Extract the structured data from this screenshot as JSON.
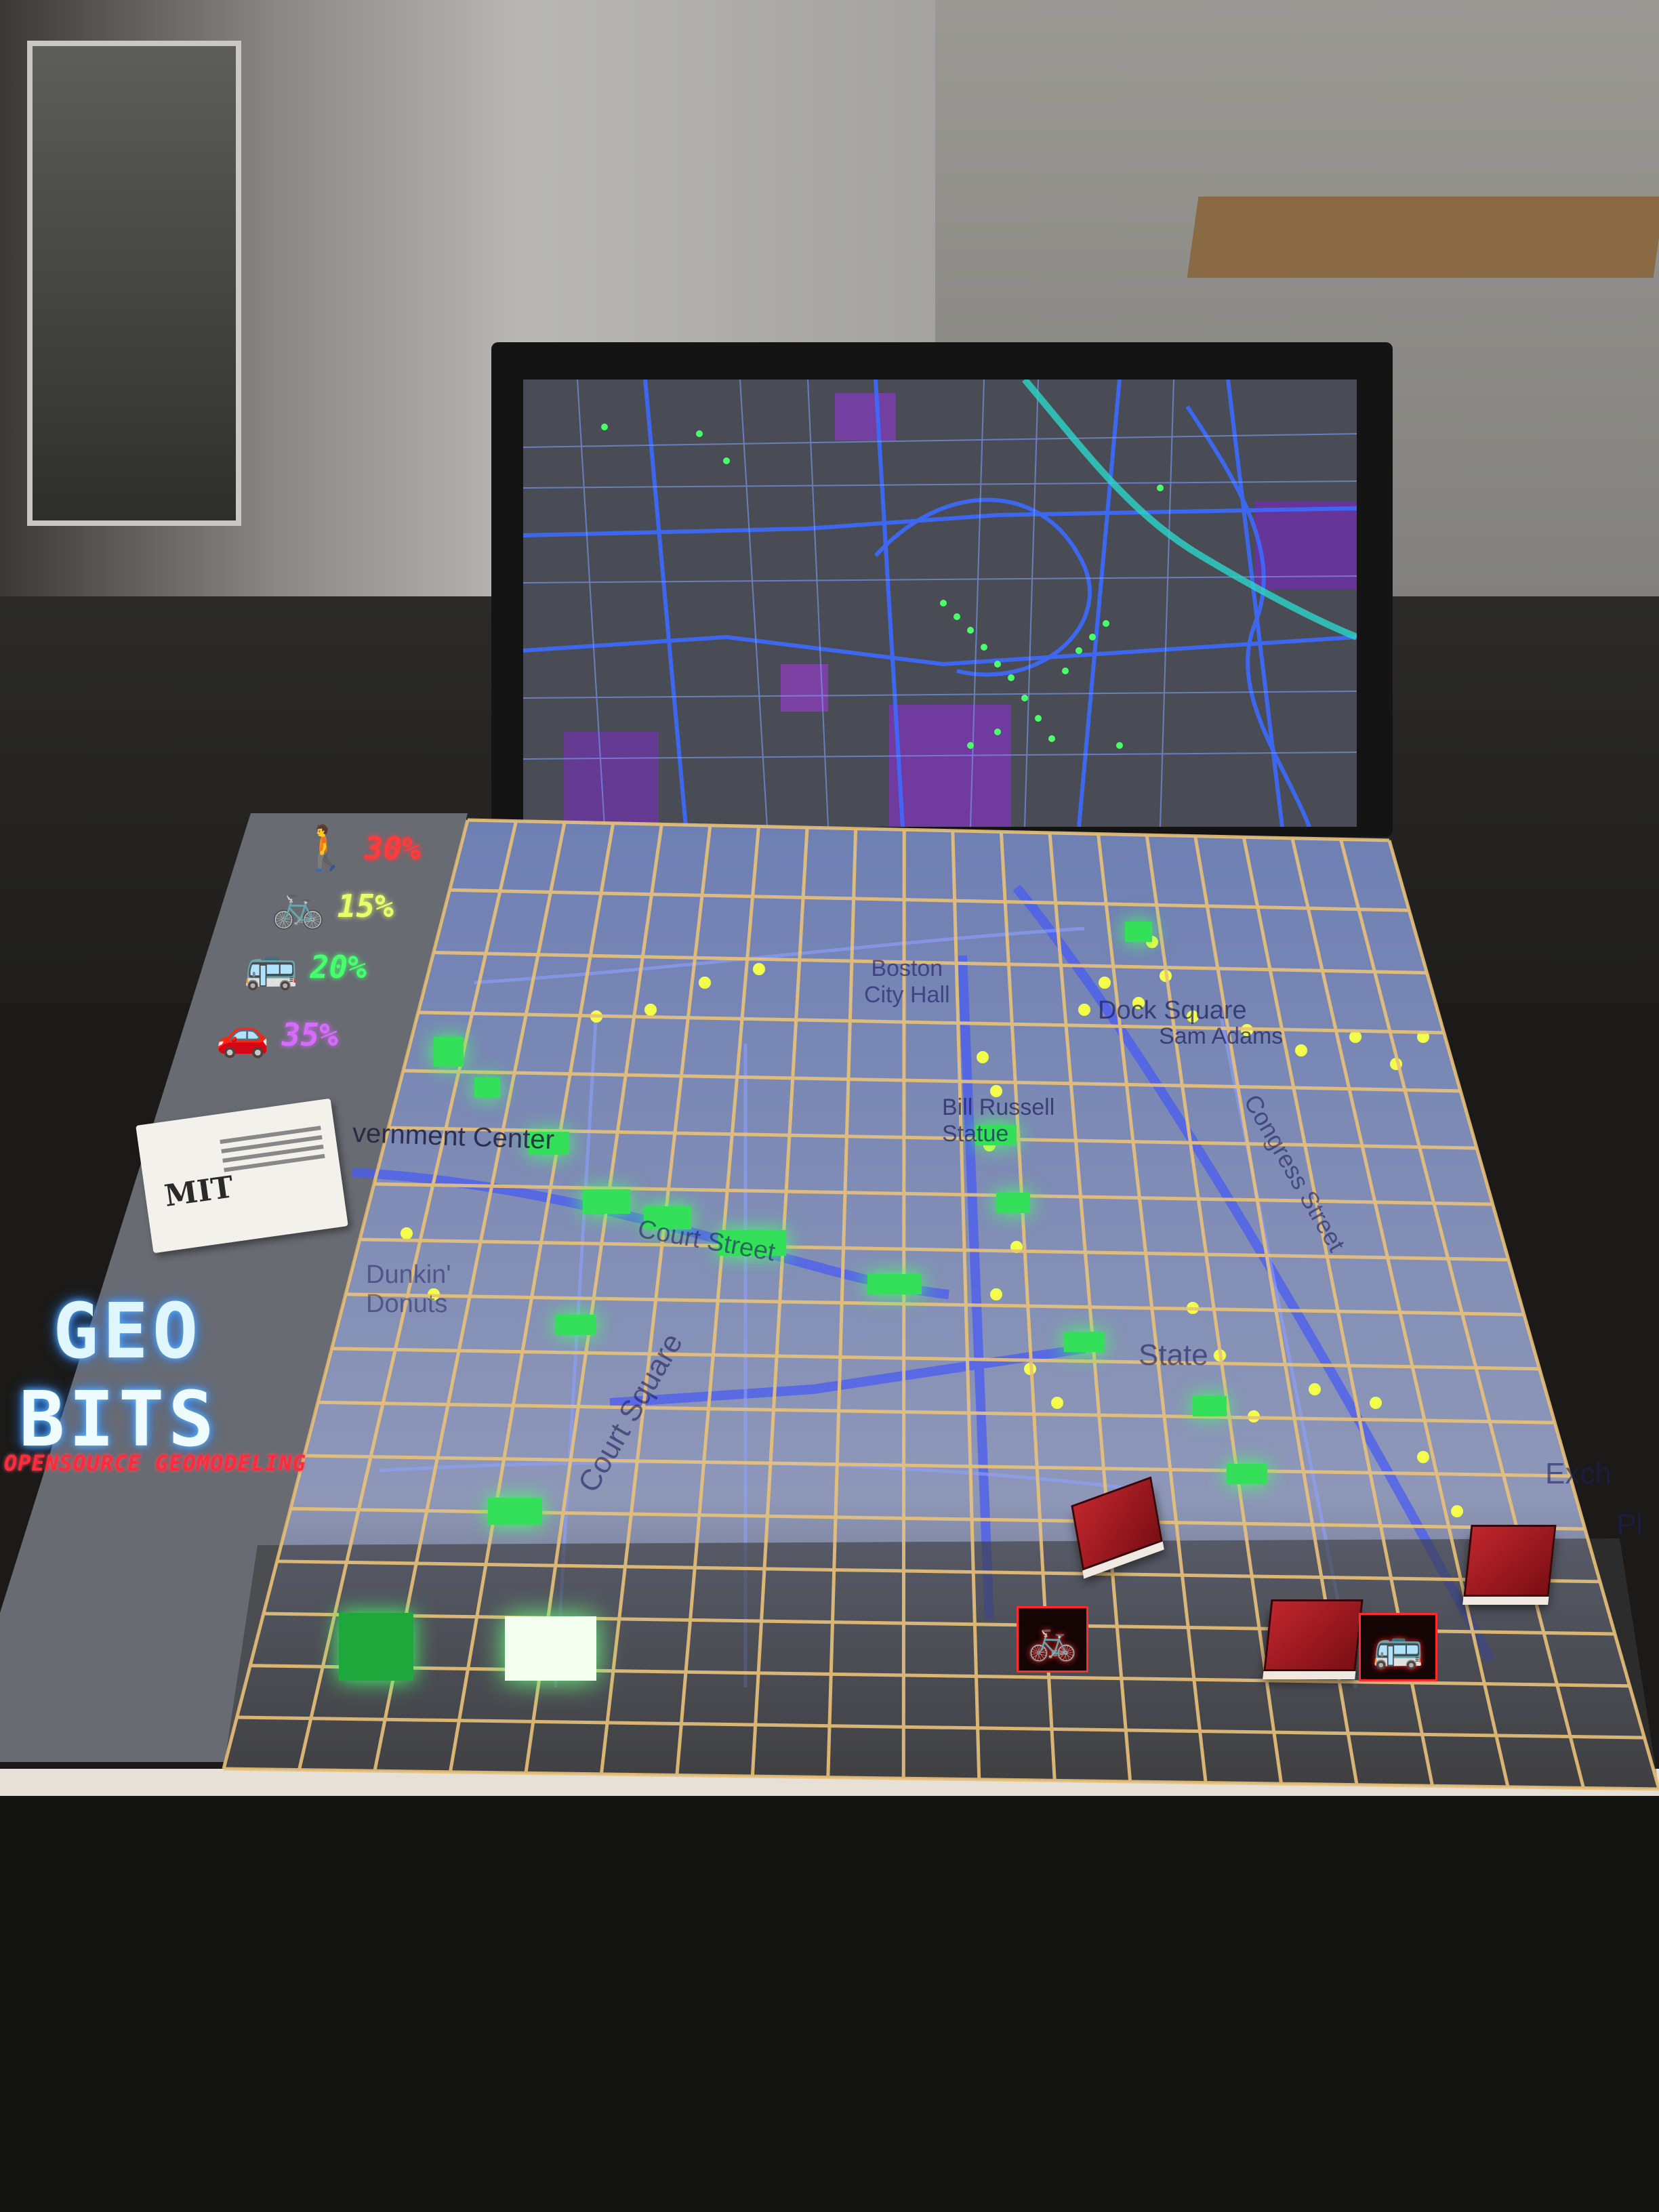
{
  "mode_share": [
    {
      "icon": "walk-icon",
      "glyph": "🚶",
      "value": "30%",
      "color": "#ff3b3b"
    },
    {
      "icon": "bike-icon",
      "glyph": "🚲",
      "value": "15%",
      "color": "#e8ff6a"
    },
    {
      "icon": "bus-icon",
      "glyph": "🚌",
      "value": "20%",
      "color": "#46ff6e"
    },
    {
      "icon": "car-icon",
      "glyph": "🚗",
      "value": "35%",
      "color": "#d86bff"
    }
  ],
  "logo": {
    "line1": "GEO",
    "line2": "BITS",
    "subtitle": "OPENSOURCE GEOMODELING"
  },
  "card": {
    "logo": "MIT"
  },
  "map_labels": {
    "city_hall": "Boston\nCity Hall",
    "government_center": "vernment Center",
    "dock_square": "Dock Square",
    "sam_adams": "Sam Adams",
    "bill_russell": "Bill Russell\nStatue",
    "court_street": "Court Street",
    "court_square": "Court Square",
    "dunkin": "Dunkin'\nDonuts",
    "congress": "Congress Street",
    "state": "State",
    "exchange": "Exch",
    "pl": "Pl"
  },
  "tiles": [
    {
      "icon": "bike-icon",
      "glyph": "🚲"
    },
    {
      "icon": "bus-icon",
      "glyph": "🚌"
    }
  ],
  "colors": {
    "grid_line": "#e9c27a",
    "map_road": "#5a6cff",
    "activity_dot": "#f3ff4a",
    "building_green": "#34e05a"
  }
}
